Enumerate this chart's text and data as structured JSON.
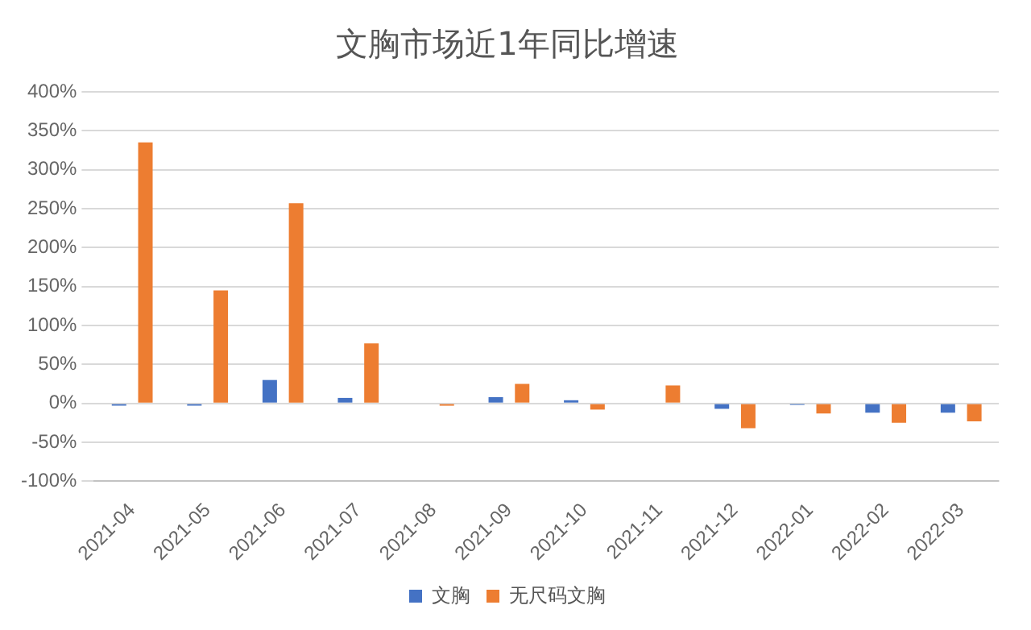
{
  "chart_data": {
    "type": "bar",
    "title": "文胸市场近1年同比增速",
    "categories": [
      "2021-04",
      "2021-05",
      "2021-06",
      "2021-07",
      "2021-08",
      "2021-09",
      "2021-10",
      "2021-11",
      "2021-12",
      "2022-01",
      "2022-02",
      "2022-03"
    ],
    "series": [
      {
        "name": "文胸",
        "color": "#4472c4",
        "values": [
          -3,
          -3,
          30,
          7,
          0,
          8,
          4,
          0,
          -7,
          -2,
          -12,
          -12
        ]
      },
      {
        "name": "无尺码文胸",
        "color": "#ed7d31",
        "values": [
          335,
          145,
          257,
          77,
          -3,
          25,
          -8,
          23,
          -32,
          -13,
          -25,
          -23
        ]
      }
    ],
    "ylim": [
      -100,
      400
    ],
    "yticks": [
      {
        "value": -100,
        "label": "-100%"
      },
      {
        "value": -50,
        "label": "-50%"
      },
      {
        "value": 0,
        "label": "0%"
      },
      {
        "value": 50,
        "label": "50%"
      },
      {
        "value": 100,
        "label": "100%"
      },
      {
        "value": 150,
        "label": "150%"
      },
      {
        "value": 200,
        "label": "200%"
      },
      {
        "value": 250,
        "label": "250%"
      },
      {
        "value": 300,
        "label": "300%"
      },
      {
        "value": 350,
        "label": "350%"
      },
      {
        "value": 400,
        "label": "400%"
      }
    ],
    "grid": "y",
    "legend": "bottom"
  }
}
